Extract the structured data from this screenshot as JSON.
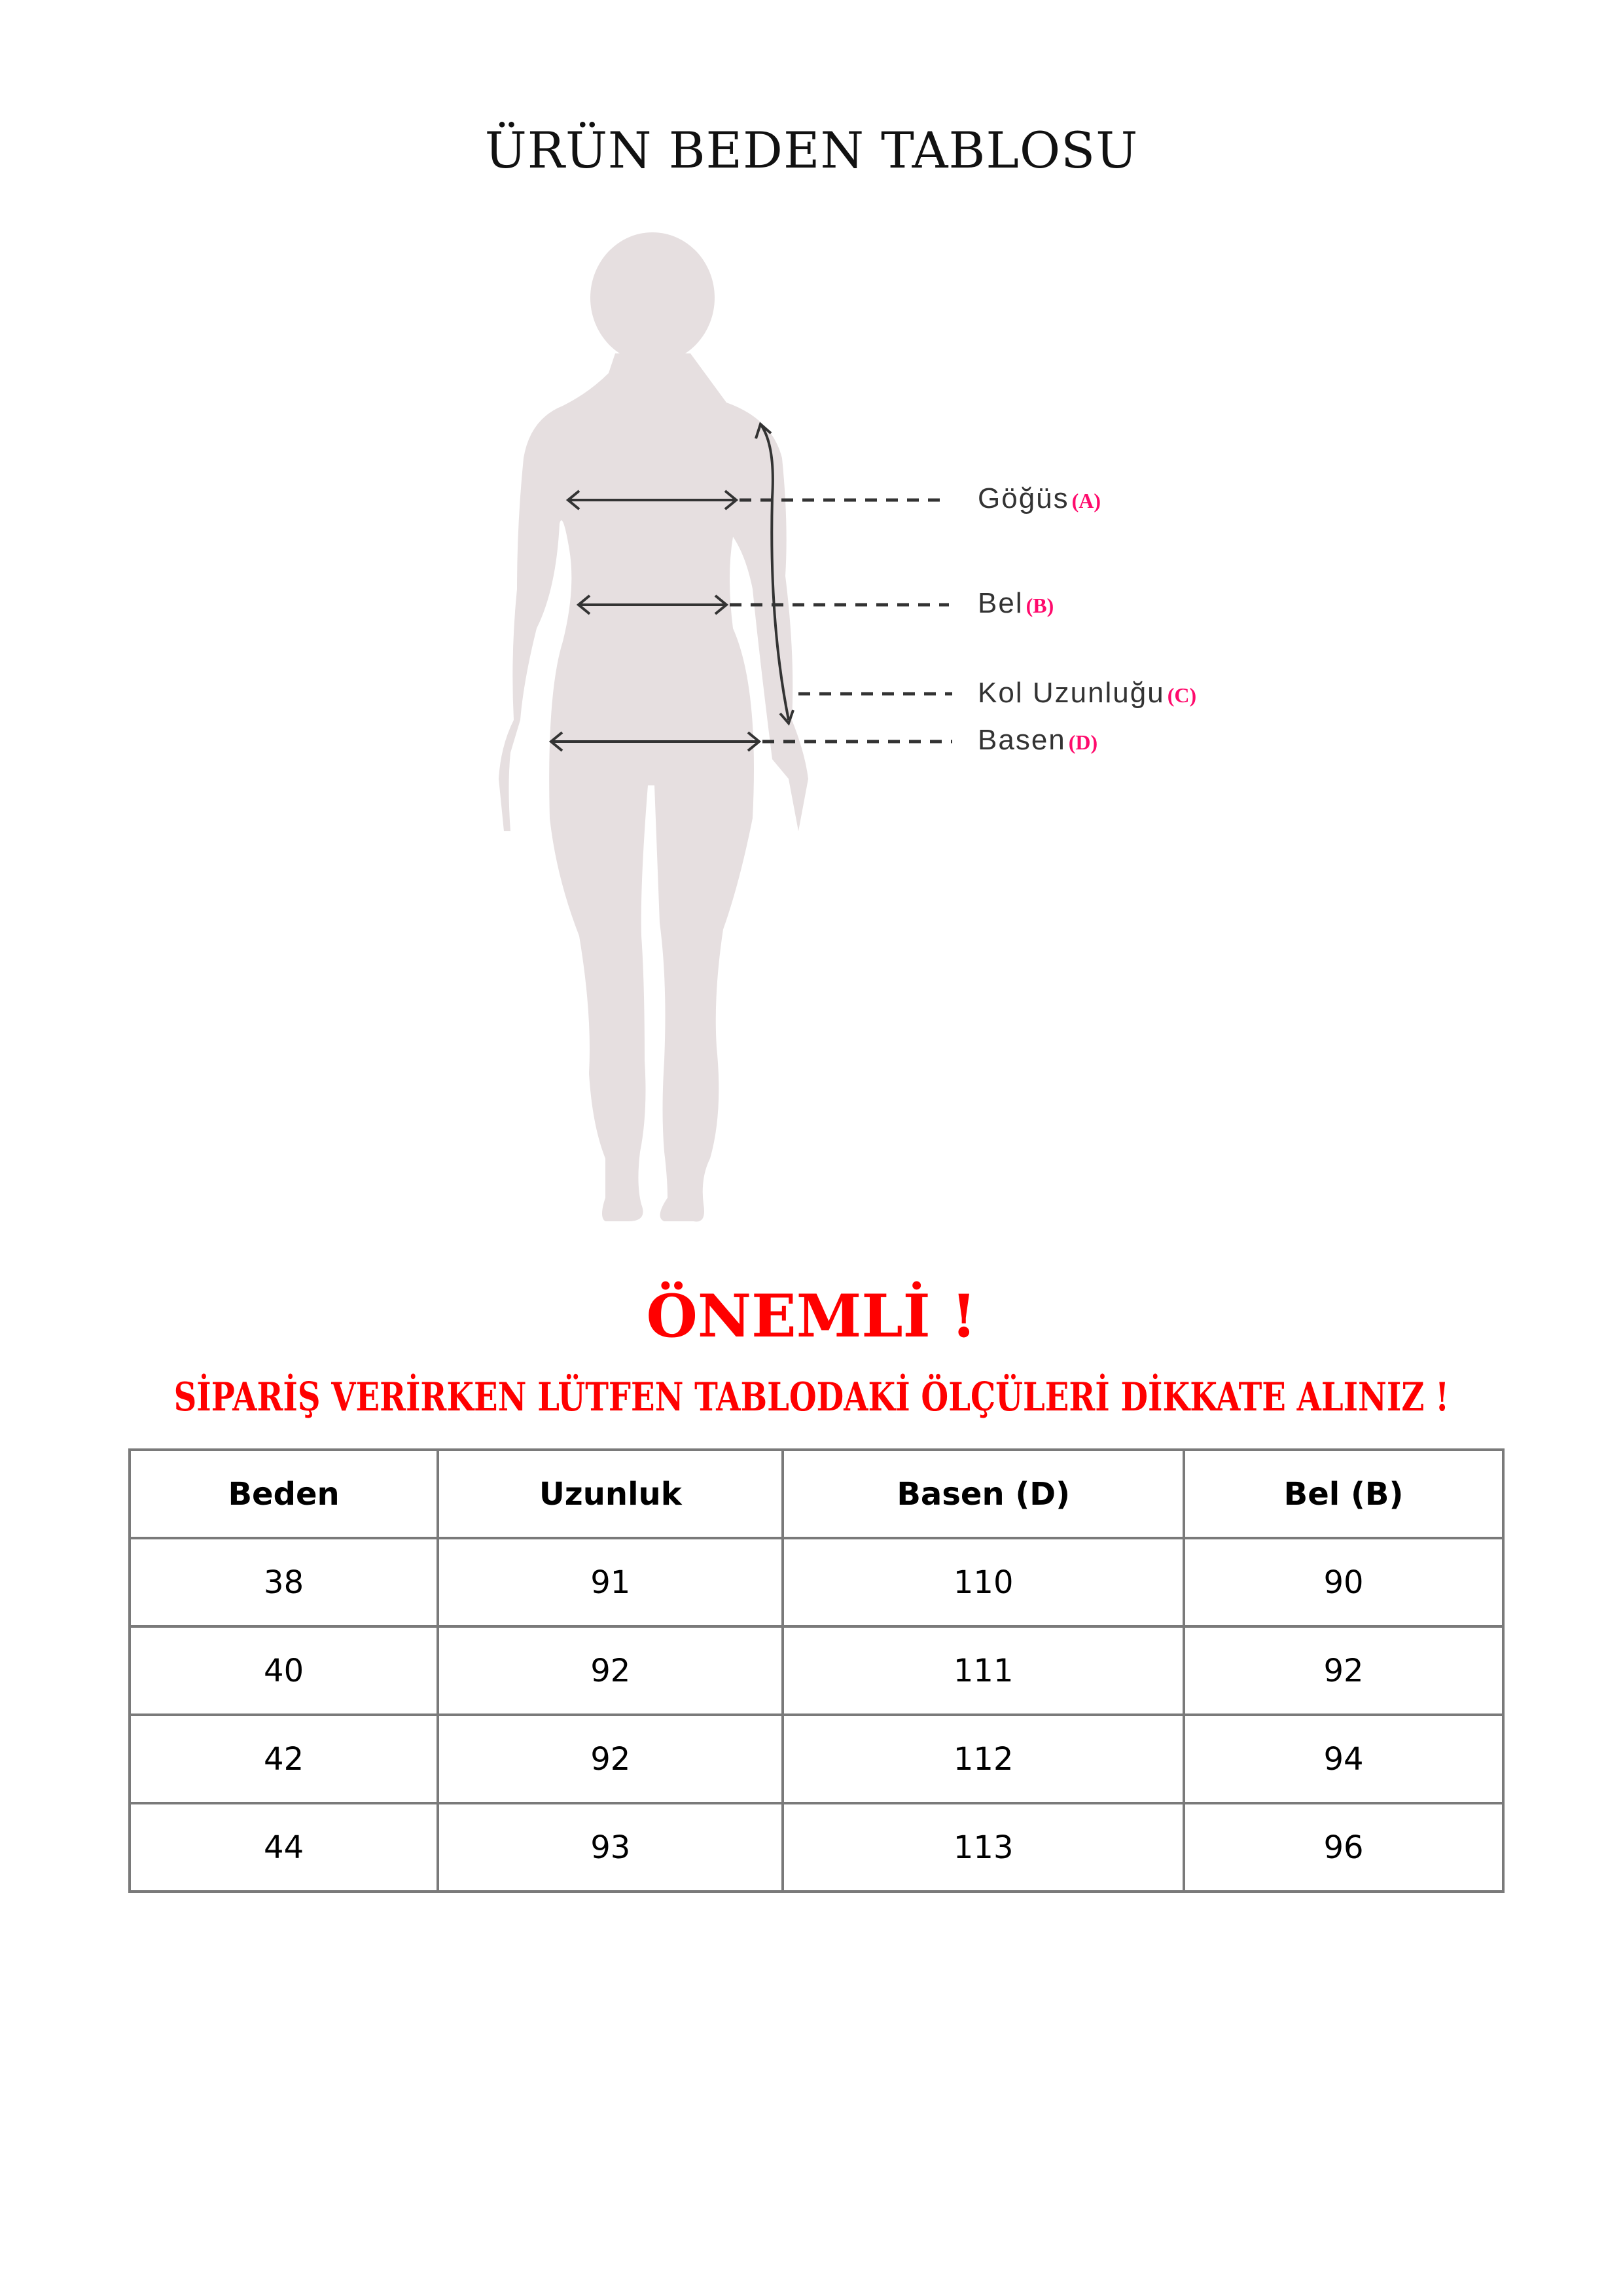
{
  "title": "ÜRÜN BEDEN TABLOSU",
  "measurements": [
    {
      "label": "Göğüs",
      "code": "(A)"
    },
    {
      "label": "Bel",
      "code": "(B)"
    },
    {
      "label": "Kol Uzunluğu",
      "code": "(C)"
    },
    {
      "label": "Basen",
      "code": "(D)"
    }
  ],
  "warning": {
    "heading": "ÖNEMLİ !",
    "text": "SİPARİŞ VERİRKEN LÜTFEN TABLODAKİ ÖLÇÜLERİ DİKKATE ALINIZ !"
  },
  "table": {
    "headers": [
      "Beden",
      "Uzunluk",
      "Basen (D)",
      "Bel (B)"
    ],
    "rows": [
      [
        "38",
        "91",
        "110",
        "90"
      ],
      [
        "40",
        "92",
        "111",
        "92"
      ],
      [
        "42",
        "92",
        "112",
        "94"
      ],
      [
        "44",
        "93",
        "113",
        "96"
      ]
    ]
  },
  "colors": {
    "accent": "#ff0000",
    "code": "#ff0a6c",
    "silhouette": "#e7dfe0"
  }
}
